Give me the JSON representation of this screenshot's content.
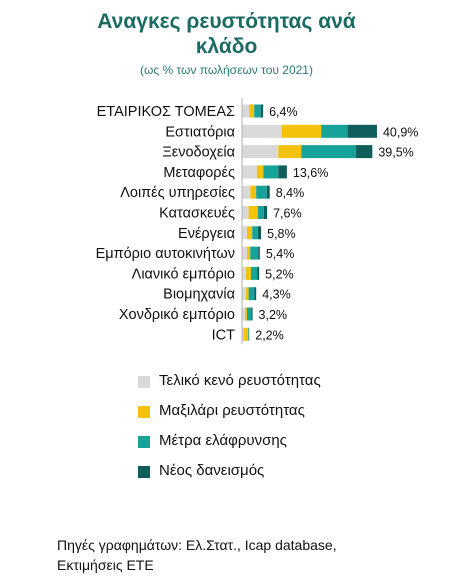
{
  "header": {
    "title_line1": "Αναγκες ρευστότητας ανά",
    "title_line2": "κλάδο",
    "subtitle": "(ως % των πωλήσεων του 2021)"
  },
  "chart_data": {
    "type": "bar",
    "orientation": "horizontal",
    "stacked": true,
    "title": "Αναγκες ρευστότητας ανά κλάδο",
    "subtitle": "(ως % των πωλήσεων του 2021)",
    "categories": [
      "ΕΤΑΙΡΙΚΟΣ ΤΟΜΕΑΣ",
      "Εστιατόρια",
      "Ξενοδοχεία",
      "Μεταφορές",
      "Λοιπές υπηρεσίες",
      "Κατασκευές",
      "Ενέργεια",
      "Εμπόριο αυτοκινήτων",
      "Λιανικό εμπόριο",
      "Βιομηχανία",
      "Χονδρικό εμπόριο",
      "ICT"
    ],
    "totals": [
      "6,4%",
      "40,9%",
      "39,5%",
      "13,6%",
      "8,4%",
      "7,6%",
      "5,8%",
      "5,4%",
      "5,2%",
      "4,3%",
      "3,2%",
      "2,2%"
    ],
    "series": [
      {
        "name": "Τελικό κενό ρευστότητας",
        "color": "#d9d9d9",
        "values": [
          2.2,
          12.0,
          11.0,
          4.5,
          2.5,
          2.0,
          1.5,
          1.5,
          1.2,
          1.2,
          0.9,
          0.4
        ]
      },
      {
        "name": "Μαξιλάρι ρευστότητας",
        "color": "#f4c20d",
        "values": [
          1.5,
          12.0,
          7.0,
          2.0,
          1.8,
          2.8,
          1.6,
          1.0,
          1.5,
          0.8,
          0.6,
          1.5
        ]
      },
      {
        "name": "Μέτρα ελάφρυνσης",
        "color": "#17a39a",
        "values": [
          2.0,
          8.0,
          16.5,
          4.5,
          3.2,
          1.8,
          1.7,
          2.4,
          1.9,
          1.8,
          1.3,
          0.3
        ]
      },
      {
        "name": "Νέος δανεισμός",
        "color": "#0f5e5b",
        "values": [
          0.7,
          8.9,
          5.0,
          2.6,
          0.9,
          1.0,
          1.0,
          0.5,
          0.6,
          0.5,
          0.4,
          0.0
        ]
      }
    ],
    "xlim": [
      0,
      42
    ],
    "legend_position": "bottom"
  },
  "footer": {
    "sources_line1": "Πηγές γραφημάτων: Ελ.Στατ., Icap database,",
    "sources_line2": "Εκτιμήσεις ΕΤΕ"
  }
}
